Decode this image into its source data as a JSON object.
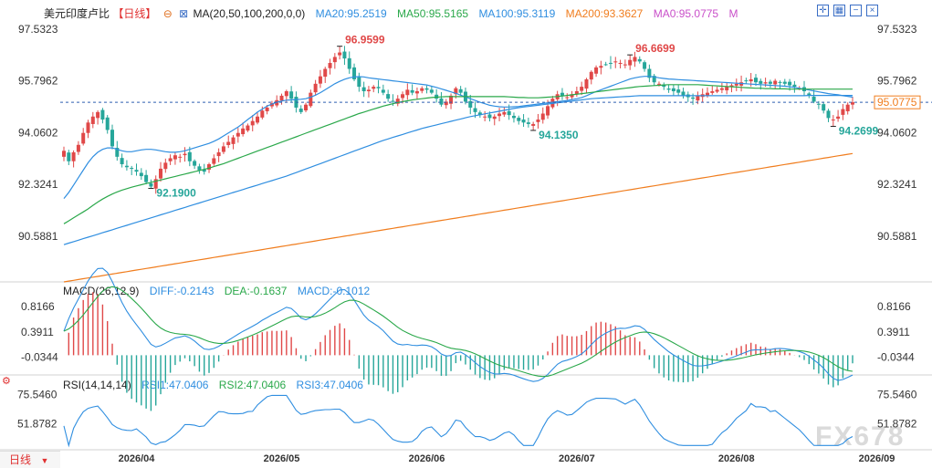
{
  "chart_data": [
    {
      "type": "candlestick",
      "title": "美元印度卢比",
      "period_tag": "【日线】",
      "ma_label": "MA(20,50,100,200,0,0)",
      "legend": [
        {
          "name": "MA20",
          "text": "MA20:95.2519",
          "color": "#2f8ee0"
        },
        {
          "name": "MA50",
          "text": "MA50:95.5165",
          "color": "#2aa84a"
        },
        {
          "name": "MA100",
          "text": "MA100:95.3119",
          "color": "#2f8ee0"
        },
        {
          "name": "MA200",
          "text": "MA200:93.3627",
          "color": "#f07d1e"
        },
        {
          "name": "MA0",
          "text": "MA0:95.0775",
          "color": "#c94fc9"
        }
      ],
      "legend_tail": "M",
      "ylim": [
        89.05,
        97.9
      ],
      "yticks": [
        "97.5323",
        "95.7962",
        "94.0602",
        "92.3241",
        "90.5881"
      ],
      "ytick_values": [
        97.5323,
        95.7962,
        94.0602,
        92.3241,
        90.5881
      ],
      "current_price": "95.0775",
      "current_value": 95.0775,
      "annotations": [
        {
          "text": "96.9599",
          "i": 57,
          "value": 96.9599,
          "color": "#e04848"
        },
        {
          "text": "92.1900",
          "i": 18,
          "value": 92.19,
          "color": "#26a69a"
        },
        {
          "text": "94.1350",
          "i": 97,
          "value": 94.135,
          "color": "#26a69a"
        },
        {
          "text": "96.6699",
          "i": 117,
          "value": 96.6699,
          "color": "#e04848"
        },
        {
          "text": "94.2699",
          "i": 159,
          "value": 94.2699,
          "color": "#26a69a"
        }
      ],
      "closes": [
        93.45,
        93.1,
        93.4,
        93.65,
        94.05,
        94.4,
        94.6,
        94.75,
        94.5,
        94.15,
        93.6,
        93.25,
        93.0,
        92.9,
        92.85,
        92.75,
        92.6,
        92.4,
        92.25,
        92.5,
        92.85,
        93.05,
        93.2,
        93.3,
        93.25,
        93.35,
        93.1,
        92.95,
        92.8,
        92.75,
        93.0,
        93.2,
        93.4,
        93.6,
        93.75,
        93.9,
        94.05,
        94.2,
        94.3,
        94.45,
        94.6,
        94.8,
        94.9,
        95.05,
        95.15,
        95.3,
        95.45,
        95.2,
        94.9,
        94.75,
        95.0,
        95.4,
        95.7,
        95.95,
        96.2,
        96.4,
        96.6,
        96.75,
        96.55,
        96.2,
        95.85,
        95.6,
        95.45,
        95.5,
        95.6,
        95.55,
        95.4,
        95.2,
        95.1,
        95.2,
        95.35,
        95.5,
        95.4,
        95.45,
        95.55,
        95.5,
        95.4,
        95.2,
        95.0,
        95.1,
        95.3,
        95.55,
        95.4,
        95.1,
        94.9,
        94.75,
        94.65,
        94.6,
        94.55,
        94.6,
        94.7,
        94.75,
        94.65,
        94.55,
        94.45,
        94.4,
        94.35,
        94.35,
        94.5,
        94.7,
        94.95,
        95.2,
        95.35,
        95.3,
        95.25,
        95.35,
        95.45,
        95.6,
        95.85,
        96.1,
        96.25,
        96.3,
        96.35,
        96.4,
        96.45,
        96.4,
        96.35,
        96.5,
        96.6,
        96.45,
        96.2,
        95.9,
        95.75,
        95.7,
        95.6,
        95.5,
        95.45,
        95.4,
        95.3,
        95.25,
        95.2,
        95.3,
        95.35,
        95.4,
        95.45,
        95.5,
        95.55,
        95.6,
        95.65,
        95.7,
        95.75,
        95.8,
        95.85,
        95.75,
        95.7,
        95.75,
        95.7,
        95.8,
        95.75,
        95.7,
        95.65,
        95.6,
        95.55,
        95.45,
        95.3,
        95.1,
        95.0,
        94.8,
        94.55,
        94.5,
        94.6,
        94.85,
        95.0,
        95.08
      ],
      "ma20": [
        91.85,
        92.05,
        92.3,
        92.55,
        92.8,
        93.05,
        93.25,
        93.4,
        93.5,
        93.55,
        93.55,
        93.5,
        93.45,
        93.42,
        93.42,
        93.45,
        93.48,
        93.5,
        93.5,
        93.48,
        93.45,
        93.42,
        93.4,
        93.4,
        93.42,
        93.45,
        93.5,
        93.55,
        93.6,
        93.65,
        93.7,
        93.77,
        93.85,
        93.95,
        94.05,
        94.15,
        94.25,
        94.37,
        94.5,
        94.62,
        94.75,
        94.85,
        94.95,
        95.02,
        95.08,
        95.12,
        95.15,
        95.16,
        95.17,
        95.18,
        95.2,
        95.25,
        95.32,
        95.4,
        95.5,
        95.6,
        95.7,
        95.78,
        95.85,
        95.9,
        95.93,
        95.94,
        95.93,
        95.9,
        95.88,
        95.86,
        95.84,
        95.82,
        95.8,
        95.78,
        95.76,
        95.74,
        95.72,
        95.7,
        95.68,
        95.66,
        95.62,
        95.58,
        95.53,
        95.48,
        95.43,
        95.38,
        95.32,
        95.26,
        95.2,
        95.14,
        95.08,
        95.03,
        94.98,
        94.95,
        94.93,
        94.92,
        94.92,
        94.93,
        94.94,
        94.96,
        94.98,
        95.0,
        95.02,
        95.04,
        95.06,
        95.08,
        95.1,
        95.12,
        95.14,
        95.17,
        95.2,
        95.24,
        95.3,
        95.37,
        95.44,
        95.5,
        95.56,
        95.62,
        95.68,
        95.74,
        95.8,
        95.86,
        95.9,
        95.93,
        95.95,
        95.95,
        95.93,
        95.9,
        95.88,
        95.86,
        95.85,
        95.84,
        95.83,
        95.82,
        95.81,
        95.8,
        95.79,
        95.78,
        95.77,
        95.76,
        95.75,
        95.74,
        95.73,
        95.72,
        95.71,
        95.7,
        95.69,
        95.68,
        95.67,
        95.66,
        95.65,
        95.64,
        95.63,
        95.62,
        95.6,
        95.58,
        95.55,
        95.52,
        95.49,
        95.46,
        95.43,
        95.4,
        95.37,
        95.35,
        95.33,
        95.3,
        95.28,
        95.25
      ],
      "ma50": [
        91.0,
        91.1,
        91.2,
        91.3,
        91.4,
        91.5,
        91.62,
        91.73,
        91.83,
        91.92,
        92.0,
        92.07,
        92.13,
        92.18,
        92.23,
        92.27,
        92.31,
        92.35,
        92.39,
        92.43,
        92.47,
        92.51,
        92.55,
        92.59,
        92.63,
        92.67,
        92.71,
        92.75,
        92.79,
        92.83,
        92.87,
        92.92,
        92.97,
        93.02,
        93.08,
        93.14,
        93.2,
        93.26,
        93.32,
        93.38,
        93.44,
        93.5,
        93.56,
        93.62,
        93.68,
        93.74,
        93.8,
        93.86,
        93.92,
        93.98,
        94.04,
        94.1,
        94.16,
        94.22,
        94.28,
        94.34,
        94.4,
        94.46,
        94.52,
        94.58,
        94.64,
        94.7,
        94.75,
        94.8,
        94.85,
        94.9,
        94.95,
        94.99,
        95.03,
        95.07,
        95.1,
        95.13,
        95.16,
        95.18,
        95.2,
        95.22,
        95.24,
        95.25,
        95.26,
        95.27,
        95.27,
        95.27,
        95.27,
        95.27,
        95.27,
        95.27,
        95.27,
        95.27,
        95.27,
        95.27,
        95.27,
        95.27,
        95.26,
        95.25,
        95.24,
        95.24,
        95.23,
        95.23,
        95.23,
        95.24,
        95.25,
        95.26,
        95.27,
        95.29,
        95.31,
        95.33,
        95.35,
        95.37,
        95.39,
        95.41,
        95.43,
        95.45,
        95.47,
        95.49,
        95.51,
        95.53,
        95.55,
        95.57,
        95.59,
        95.61,
        95.62,
        95.63,
        95.64,
        95.65,
        95.66,
        95.67,
        95.67,
        95.67,
        95.67,
        95.67,
        95.67,
        95.67,
        95.66,
        95.65,
        95.64,
        95.63,
        95.62,
        95.61,
        95.6,
        95.59,
        95.58,
        95.57,
        95.56,
        95.55,
        95.55,
        95.54,
        95.54,
        95.53,
        95.53,
        95.53,
        95.52,
        95.52,
        95.52,
        95.52,
        95.52,
        95.52,
        95.52,
        95.52,
        95.52,
        95.52,
        95.52,
        95.52,
        95.52,
        95.52
      ],
      "ma100": [
        90.3,
        90.35,
        90.4,
        90.45,
        90.5,
        90.55,
        90.6,
        90.65,
        90.7,
        90.75,
        90.8,
        90.85,
        90.9,
        90.95,
        91.0,
        91.05,
        91.1,
        91.15,
        91.2,
        91.25,
        91.3,
        91.35,
        91.4,
        91.45,
        91.5,
        91.55,
        91.6,
        91.65,
        91.7,
        91.75,
        91.8,
        91.85,
        91.9,
        91.95,
        92.0,
        92.05,
        92.1,
        92.15,
        92.2,
        92.25,
        92.3,
        92.35,
        92.4,
        92.45,
        92.5,
        92.55,
        92.6,
        92.66,
        92.72,
        92.78,
        92.84,
        92.9,
        92.96,
        93.02,
        93.08,
        93.14,
        93.2,
        93.26,
        93.32,
        93.38,
        93.44,
        93.5,
        93.56,
        93.62,
        93.68,
        93.74,
        93.8,
        93.85,
        93.9,
        93.95,
        94.0,
        94.05,
        94.1,
        94.15,
        94.2,
        94.24,
        94.28,
        94.32,
        94.36,
        94.4,
        94.44,
        94.48,
        94.52,
        94.56,
        94.6,
        94.63,
        94.66,
        94.69,
        94.72,
        94.75,
        94.78,
        94.81,
        94.84,
        94.87,
        94.9,
        94.92,
        94.94,
        94.96,
        94.98,
        95.0,
        95.02,
        95.04,
        95.06,
        95.08,
        95.1,
        95.12,
        95.14,
        95.16,
        95.18,
        95.2,
        95.21,
        95.22,
        95.23,
        95.24,
        95.25,
        95.26,
        95.27,
        95.28,
        95.29,
        95.3,
        95.3,
        95.3,
        95.3,
        95.3,
        95.3,
        95.3,
        95.3,
        95.3,
        95.3,
        95.3,
        95.3,
        95.3,
        95.3,
        95.3,
        95.3,
        95.3,
        95.3,
        95.3,
        95.3,
        95.3,
        95.3,
        95.3,
        95.3,
        95.3,
        95.3,
        95.3,
        95.3,
        95.3,
        95.3,
        95.3,
        95.3,
        95.3,
        95.3,
        95.3,
        95.31,
        95.31,
        95.31,
        95.31,
        95.31,
        95.31,
        95.31,
        95.31,
        95.31,
        95.31
      ],
      "ma200_range": [
        89.05,
        93.36
      ],
      "ma0": 95.0775
    },
    {
      "type": "macd",
      "label": "MACD(26,12,9)",
      "legend": [
        {
          "name": "DIFF",
          "text": "DIFF:-0.2143",
          "color": "#2f8ee0"
        },
        {
          "name": "DEA",
          "text": "DEA:-0.1637",
          "color": "#2aa84a"
        },
        {
          "name": "MACD",
          "text": "MACD:-0.1012",
          "color": "#2f8ee0"
        }
      ],
      "ylim": [
        -0.3,
        1.0
      ],
      "yticks": [
        "0.8166",
        "0.3911",
        "-0.0344"
      ],
      "ytick_values": [
        0.8166,
        0.3911,
        -0.0344
      ]
    },
    {
      "type": "rsi",
      "label": "RSI(14,14,14)",
      "legend": [
        {
          "name": "RSI1",
          "text": "RSI1:47.0406",
          "color": "#2f8ee0"
        },
        {
          "name": "RSI2",
          "text": "RSI2:47.0406",
          "color": "#2aa84a"
        },
        {
          "name": "RSI3",
          "text": "RSI3:47.0406",
          "color": "#2f8ee0"
        }
      ],
      "ylim": [
        32,
        82
      ],
      "yticks": [
        "75.5460",
        "51.8782"
      ],
      "ytick_values": [
        75.546,
        51.8782
      ]
    }
  ],
  "x_dates": [
    "2026/04",
    "2026/05",
    "2026/06",
    "2026/07",
    "2026/08",
    "2026/09"
  ],
  "x_date_index": [
    15,
    45,
    75,
    106,
    139,
    168
  ],
  "bottom_tab": "日线",
  "watermark": "FX678",
  "toolbar": {
    "icons": [
      "crosshair-icon",
      "grid-icon",
      "minus-icon",
      "close-icon"
    ]
  }
}
